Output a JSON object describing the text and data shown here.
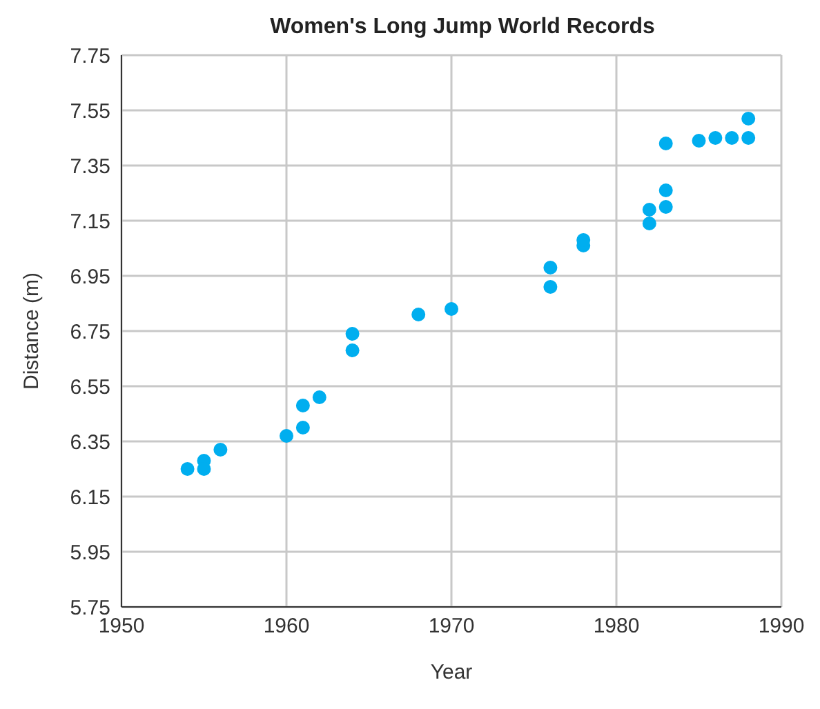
{
  "chart_data": {
    "type": "scatter",
    "title": "Women's Long Jump World Records",
    "xlabel": "Year",
    "ylabel": "Distance (m)",
    "x": [
      1954,
      1955,
      1955,
      1956,
      1960,
      1961,
      1961,
      1962,
      1964,
      1964,
      1968,
      1970,
      1976,
      1976,
      1978,
      1978,
      1982,
      1982,
      1983,
      1983,
      1983,
      1985,
      1986,
      1987,
      1988,
      1988
    ],
    "series": [
      {
        "color": "#00aeef",
        "values": [
          6.25,
          6.28,
          6.25,
          6.32,
          6.37,
          6.4,
          6.48,
          6.51,
          6.68,
          6.74,
          6.81,
          6.83,
          6.91,
          6.98,
          7.06,
          7.08,
          7.14,
          7.19,
          7.2,
          7.26,
          7.43,
          7.44,
          7.45,
          7.45,
          7.45,
          7.52
        ]
      }
    ],
    "xlim": [
      1950,
      1990
    ],
    "xticks": [
      1950,
      1960,
      1970,
      1980,
      1990
    ],
    "ylim": [
      5.75,
      7.75
    ],
    "yticks": [
      5.75,
      5.95,
      6.15,
      6.35,
      6.55,
      6.75,
      6.95,
      7.15,
      7.35,
      7.55,
      7.75
    ],
    "grid": true,
    "marker": "circle"
  }
}
